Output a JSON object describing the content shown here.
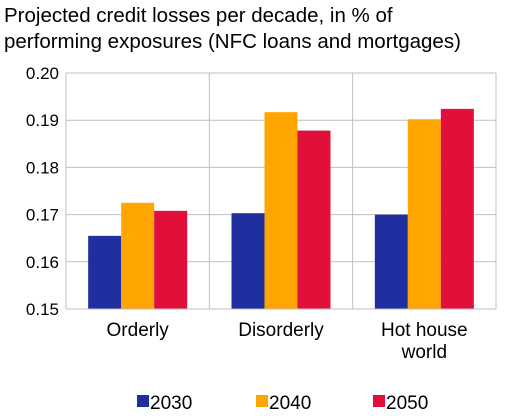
{
  "chart_data": {
    "type": "bar",
    "title": "Projected credit losses per decade, in % of performing exposures (NFC loans and mortgages)",
    "title_lines": [
      "Projected credit losses per decade, in % of",
      "performing exposures (NFC loans and mortgages)"
    ],
    "categories": [
      "Orderly",
      "Disorderly",
      "Hot house world"
    ],
    "category_lines": [
      [
        "Orderly"
      ],
      [
        "Disorderly"
      ],
      [
        "Hot house",
        "world"
      ]
    ],
    "series": [
      {
        "name": "2030",
        "color": "#1f2fa0",
        "values": [
          0.1655,
          0.1703,
          0.17
        ]
      },
      {
        "name": "2040",
        "color": "#ffa500",
        "values": [
          0.1725,
          0.1917,
          0.1902
        ]
      },
      {
        "name": "2050",
        "color": "#e0103a",
        "values": [
          0.1708,
          0.1878,
          0.1924
        ]
      }
    ],
    "yticks": [
      "0.20",
      "0.19",
      "0.18",
      "0.17",
      "0.16",
      "0.15"
    ],
    "ylim": [
      0.15,
      0.2
    ],
    "xlabel": "",
    "ylabel": "",
    "legend_position": "bottom",
    "grid": "horizontal"
  }
}
